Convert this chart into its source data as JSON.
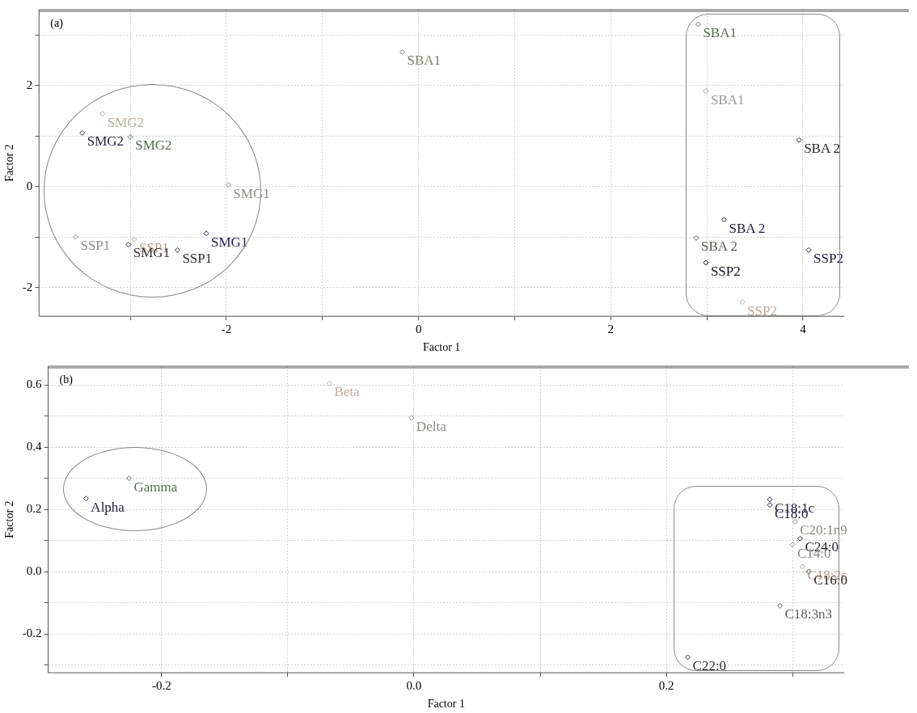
{
  "chart_data": [
    {
      "type": "scatter",
      "xlabel": "Factor 1",
      "ylabel": "Factor 2",
      "xlim": [
        -3.95,
        4.43
      ],
      "ylim": [
        -2.57,
        3.5
      ],
      "xticks": [
        {
          "value": -3,
          "label": null
        },
        -2,
        {
          "value": -1,
          "label": null
        },
        0,
        {
          "value": 1,
          "label": null
        },
        2,
        {
          "value": 3,
          "label": null
        },
        4
      ],
      "yticks": [
        -2,
        {
          "value": -1,
          "label": null
        },
        0,
        {
          "value": 1,
          "label": null
        },
        2,
        {
          "value": 3,
          "label": null
        }
      ],
      "grid": true,
      "marker": "diamond",
      "legend": false,
      "series": [
        {
          "x": [
            -0.17,
            -3.29,
            -3.5,
            -3.0,
            -1.98,
            -3.57,
            -2.96,
            -3.02,
            -2.51,
            -2.21,
            2.91,
            2.99,
            3.96,
            3.18,
            2.89,
            2.99,
            4.06,
            3.37
          ],
          "values": [
            2.66,
            1.44,
            1.06,
            0.98,
            0.03,
            -1.0,
            -1.05,
            -1.15,
            -1.26,
            -0.93,
            3.21,
            1.89,
            0.92,
            -0.66,
            -1.02,
            -1.51,
            -1.26,
            -2.29
          ],
          "colors": [
            "#7a7f6e",
            "#b8aca0",
            "#24243e",
            "#566856",
            "#8a8a86",
            "#8e8e8e",
            "#b0a090",
            "#3a2e36",
            "#2e2e30",
            "#1e1e46",
            "#5a6a5a",
            "#9a9a9a",
            "#2a2a2a",
            "#1a1a34",
            "#5e5a56",
            "#141420",
            "#1a1a40",
            "#c0a898"
          ]
        }
      ],
      "annotations": [
        "(a)",
        {
          "text": "SBA1",
          "x": -0.17,
          "y": 2.66
        },
        {
          "text": "SMG2",
          "x": -3.29,
          "y": 1.44
        },
        {
          "text": "SMG2",
          "x": -3.5,
          "y": 1.06
        },
        {
          "text": "SMG2",
          "x": -3.0,
          "y": 0.98
        },
        {
          "text": "SMG1",
          "x": -1.98,
          "y": 0.03
        },
        {
          "text": "SSP1",
          "x": -3.57,
          "y": -1.0
        },
        {
          "text": "SSP1",
          "x": -2.96,
          "y": -1.05
        },
        {
          "text": "SMG1",
          "x": -3.02,
          "y": -1.15
        },
        {
          "text": "SSP1",
          "x": -2.51,
          "y": -1.26
        },
        {
          "text": "SMG1",
          "x": -2.21,
          "y": -0.93
        },
        {
          "text": "SBA1",
          "x": 2.91,
          "y": 3.21
        },
        {
          "text": "SBA1",
          "x": 2.99,
          "y": 1.89
        },
        {
          "text": "SBA 2",
          "x": 3.96,
          "y": 0.92
        },
        {
          "text": "SBA 2",
          "x": 3.18,
          "y": -0.66
        },
        {
          "text": "SBA 2",
          "x": 2.89,
          "y": -1.02
        },
        {
          "text": "SSP2",
          "x": 2.99,
          "y": -1.51
        },
        {
          "text": "SSP2",
          "x": 4.06,
          "y": -1.26
        },
        {
          "text": "SSP2",
          "x": 3.37,
          "y": -2.29
        }
      ]
    },
    {
      "type": "scatter",
      "xlabel": "Factor 1",
      "ylabel": "Factor 2",
      "xlim": [
        -0.29,
        0.341
      ],
      "ylim": [
        -0.325,
        0.66
      ],
      "xticks": [
        -0.2,
        {
          "value": -0.1,
          "label": null
        },
        {
          "value": 0,
          "label": "0.0"
        },
        {
          "value": 0.1,
          "label": null
        },
        0.2,
        {
          "value": 0.3,
          "label": null
        }
      ],
      "yticks": [
        {
          "value": -0.3,
          "label": null
        },
        -0.2,
        {
          "value": -0.1,
          "label": null
        },
        {
          "value": 0,
          "label": "0.0"
        },
        {
          "value": 0.1,
          "label": null
        },
        0.2,
        {
          "value": 0.3,
          "label": null
        },
        0.4,
        {
          "value": 0.5,
          "label": null
        },
        0.6
      ],
      "grid": true,
      "marker": "diamond",
      "legend": false,
      "series": [
        {
          "x": [
            -0.067,
            -0.002,
            -0.226,
            -0.26,
            0.282,
            0.282,
            0.302,
            0.306,
            0.3,
            0.308,
            0.313,
            0.29,
            0.217
          ],
          "values": [
            0.605,
            0.494,
            0.3,
            0.235,
            0.232,
            0.214,
            0.16,
            0.106,
            0.087,
            0.016,
            0.0,
            -0.11,
            -0.275
          ],
          "colors": [
            "#c0aca4",
            "#8a8a86",
            "#5a6e5a",
            "#22223e",
            "#1e1e3a",
            "#24243e",
            "#8a8a80",
            "#1e1e30",
            "#8a8a86",
            "#b09c94",
            "#2e2422",
            "#5e5e5e",
            "#2a2a2a"
          ]
        }
      ],
      "annotations": [
        "(b)",
        {
          "text": "Beta",
          "x": -0.067,
          "y": 0.605
        },
        {
          "text": "Delta",
          "x": -0.002,
          "y": 0.494
        },
        {
          "text": "Gamma",
          "x": -0.226,
          "y": 0.3
        },
        {
          "text": "Alpha",
          "x": -0.26,
          "y": 0.235
        },
        {
          "text": "C18:1c",
          "x": 0.282,
          "y": 0.232
        },
        {
          "text": "C18:0",
          "x": 0.282,
          "y": 0.214
        },
        {
          "text": "C20:1n9",
          "x": 0.302,
          "y": 0.16
        },
        {
          "text": "C24:0",
          "x": 0.306,
          "y": 0.106
        },
        {
          "text": "C14:0",
          "x": 0.3,
          "y": 0.087
        },
        {
          "text": "C18:2c",
          "x": 0.308,
          "y": 0.016
        },
        {
          "text": "C16:0",
          "x": 0.313,
          "y": 0.0
        },
        {
          "text": "C18:3n3",
          "x": 0.29,
          "y": -0.11
        },
        {
          "text": "C22:0",
          "x": 0.217,
          "y": -0.275
        }
      ]
    }
  ]
}
